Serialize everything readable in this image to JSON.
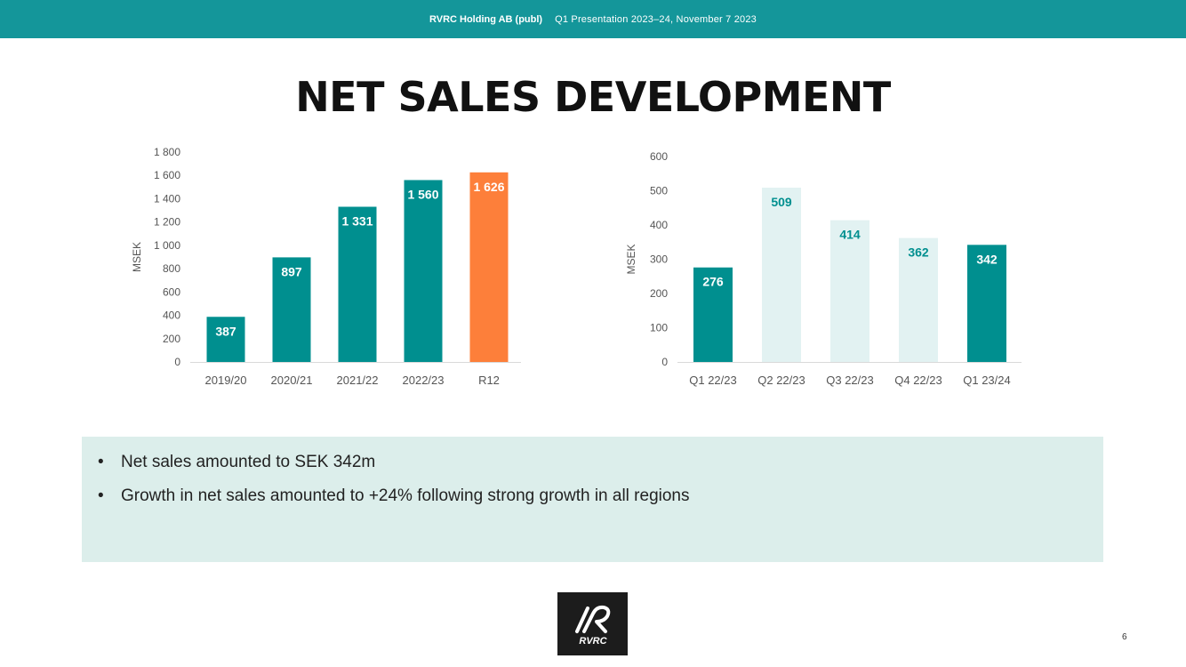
{
  "header": {
    "company": "RVRC Holding AB (publ)",
    "subtitle": "Q1 Presentation 2023–24, November 7 2023"
  },
  "page_title": "NET SALES DEVELOPMENT",
  "colors": {
    "teal": "#008f8f",
    "light_teal": "#e2f2f2",
    "orange": "#fd7f3a",
    "header": "#14969a",
    "panel": "#dceeeb"
  },
  "chart_data": [
    {
      "type": "bar",
      "categories": [
        "2019/20",
        "2020/21",
        "2021/22",
        "2022/23",
        "R12"
      ],
      "values": [
        387,
        897,
        1331,
        1560,
        1626
      ],
      "value_labels": [
        "387",
        "897",
        "1 331",
        "1 560",
        "1 626"
      ],
      "bar_colors": [
        "teal",
        "teal",
        "teal",
        "teal",
        "orange"
      ],
      "label_colors": [
        "#ffffff",
        "#ffffff",
        "#ffffff",
        "#ffffff",
        "#ffffff"
      ],
      "ylabel": "MSEK",
      "ylim": [
        0,
        1800
      ],
      "yticks": [
        0,
        200,
        400,
        600,
        800,
        1000,
        1200,
        1400,
        1600,
        1800
      ],
      "ytick_labels": [
        "0",
        "200",
        "400",
        "600",
        "800",
        "1 000",
        "1 200",
        "1 400",
        "1 600",
        "1 800"
      ],
      "grid": false,
      "legend": "none"
    },
    {
      "type": "bar",
      "categories": [
        "Q1 22/23",
        "Q2 22/23",
        "Q3 22/23",
        "Q4 22/23",
        "Q1 23/24"
      ],
      "values": [
        276,
        509,
        414,
        362,
        342
      ],
      "value_labels": [
        "276",
        "509",
        "414",
        "362",
        "342"
      ],
      "bar_colors": [
        "teal",
        "light_teal",
        "light_teal",
        "light_teal",
        "teal"
      ],
      "label_colors": [
        "#ffffff",
        "#008f8f",
        "#008f8f",
        "#008f8f",
        "#ffffff"
      ],
      "ylabel": "MSEK",
      "ylim": [
        0,
        600
      ],
      "yticks": [
        0,
        100,
        200,
        300,
        400,
        500,
        600
      ],
      "ytick_labels": [
        "0",
        "100",
        "200",
        "300",
        "400",
        "500",
        "600"
      ],
      "grid": false,
      "legend": "none"
    }
  ],
  "bullets": [
    "Net sales amounted to SEK 342m",
    "Growth in net sales amounted to +24% following strong growth in all regions"
  ],
  "logo": {
    "icon": "rvrc-logo-icon",
    "text": "RVRC"
  },
  "page_number": "6"
}
